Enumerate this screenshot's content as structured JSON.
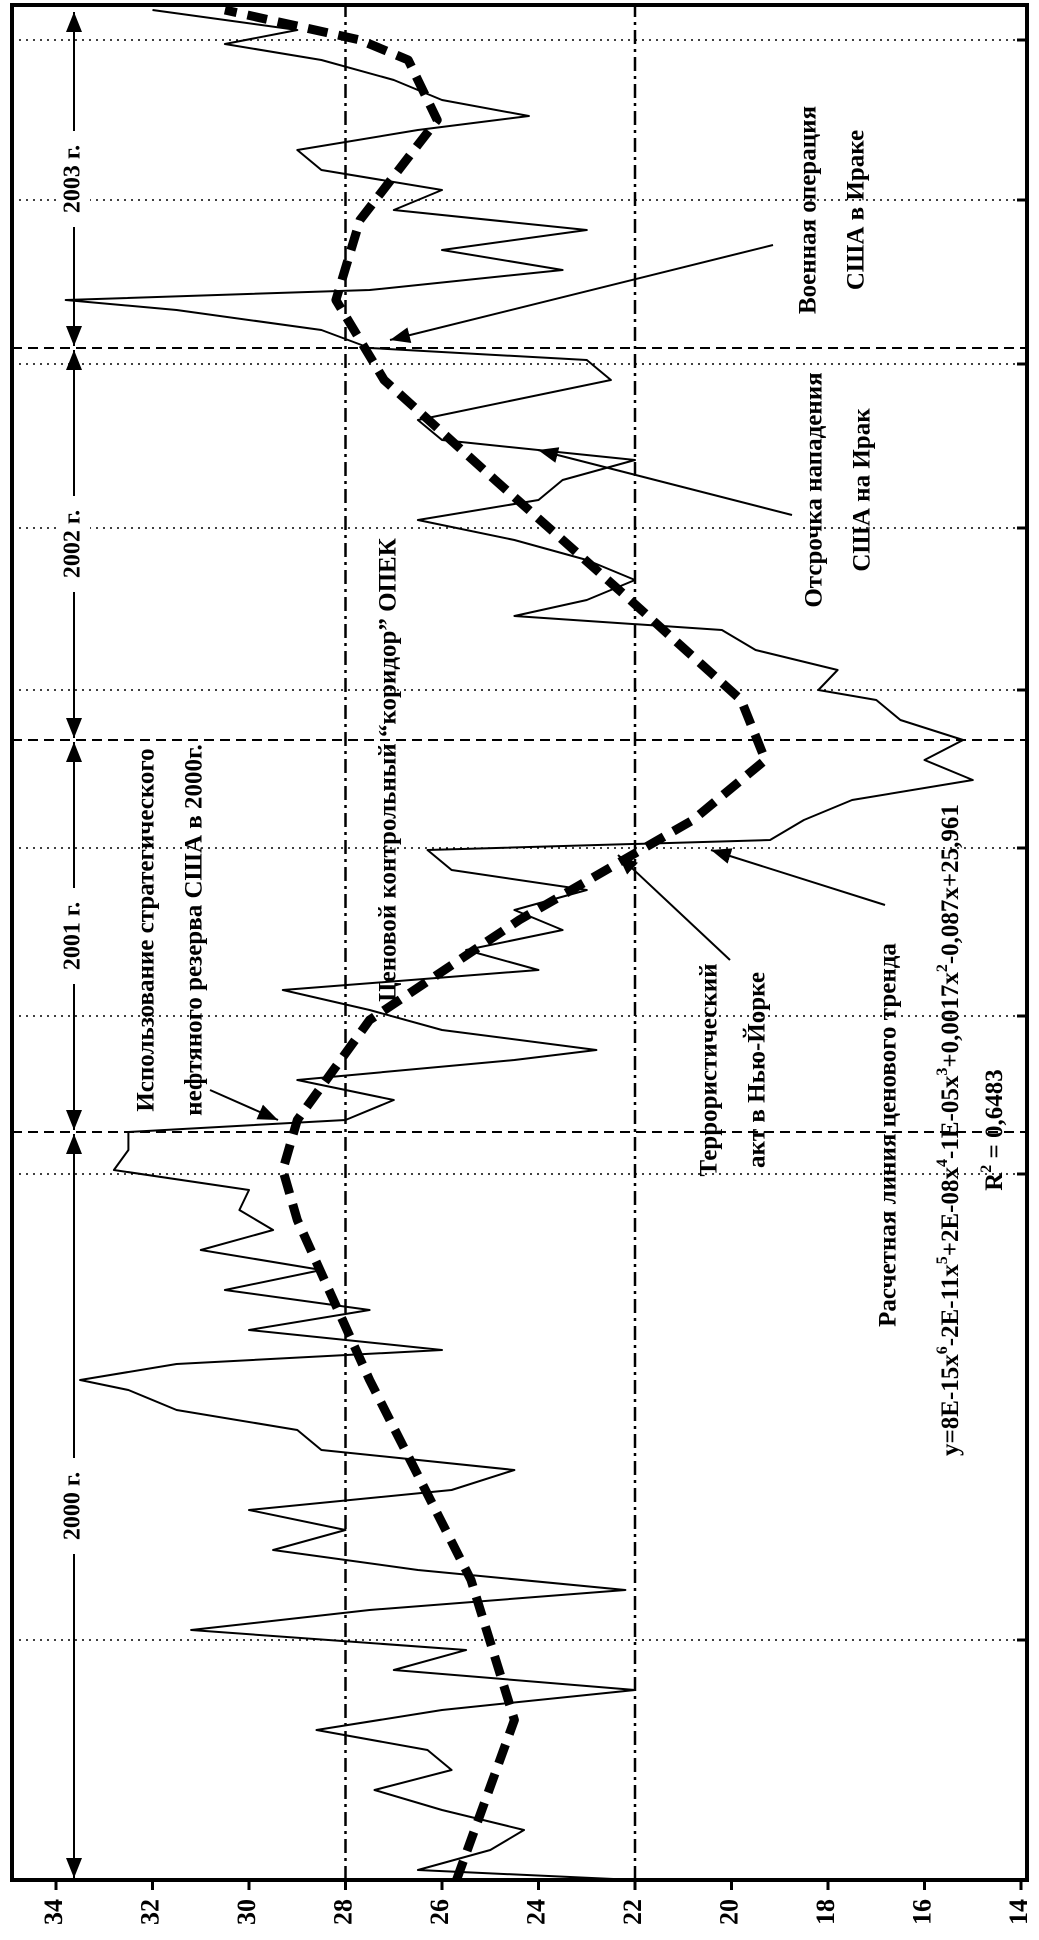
{
  "chart_data": {
    "type": "line",
    "ylim": [
      14,
      34
    ],
    "yticks": [
      34,
      32,
      30,
      28,
      26,
      24,
      22,
      20,
      18,
      16,
      14
    ],
    "xlim": [
      0,
      935
    ],
    "xticks": [
      120,
      353,
      432,
      516,
      595,
      676,
      758,
      840,
      920
    ],
    "grid_x": true,
    "reference_lines": [
      28,
      22
    ],
    "periods": [
      {
        "label": "2000 г.",
        "start": 0,
        "end": 374
      },
      {
        "label": "2001 г.",
        "start": 374,
        "end": 570
      },
      {
        "label": "2002 г.",
        "start": 570,
        "end": 766
      },
      {
        "label": "2003 г.",
        "start": 766,
        "end": 935
      }
    ],
    "series": [
      {
        "color": "#000000",
        "style": "solid",
        "x": [
          0,
          5,
          15,
          25,
          35,
          45,
          55,
          65,
          75,
          85,
          95,
          105,
          115,
          125,
          135,
          145,
          155,
          165,
          175,
          185,
          195,
          205,
          215,
          225,
          235,
          245,
          250,
          258,
          265,
          275,
          285,
          295,
          305,
          315,
          325,
          335,
          345,
          355,
          365,
          374,
          380,
          390,
          400,
          410,
          415,
          425,
          435,
          445,
          455,
          465,
          475,
          485,
          495,
          505,
          515,
          520,
          530,
          540,
          550,
          560,
          570,
          580,
          590,
          595,
          605,
          615,
          625,
          632,
          640,
          650,
          660,
          670,
          680,
          690,
          700,
          710,
          720,
          730,
          740,
          750,
          760,
          766,
          775,
          785,
          790,
          795,
          805,
          815,
          825,
          835,
          845,
          855,
          865,
          875,
          882,
          890,
          900,
          910,
          918,
          925,
          935
        ],
        "values": [
          22.0,
          26.5,
          25.0,
          24.3,
          26.0,
          27.4,
          25.8,
          26.3,
          28.6,
          26.0,
          22.0,
          27.0,
          25.5,
          31.2,
          27.5,
          22.2,
          26.5,
          29.5,
          28.0,
          30.0,
          25.8,
          24.5,
          28.5,
          29.0,
          31.5,
          32.5,
          33.5,
          31.5,
          26.0,
          30.0,
          27.5,
          30.5,
          28.5,
          31.0,
          29.5,
          30.2,
          30.0,
          32.8,
          32.5,
          32.5,
          28.0,
          27.0,
          29.0,
          24.5,
          22.8,
          26.0,
          27.5,
          29.3,
          24.0,
          25.5,
          23.5,
          24.5,
          23.0,
          25.8,
          26.3,
          19.2,
          18.5,
          17.5,
          15.0,
          16.0,
          15.2,
          16.5,
          17.0,
          18.2,
          17.8,
          19.5,
          20.2,
          24.5,
          23.0,
          22.0,
          23.0,
          24.5,
          26.5,
          24.0,
          23.5,
          22.0,
          26.0,
          26.5,
          24.5,
          22.5,
          23.0,
          27.5,
          28.5,
          31.5,
          33.8,
          27.5,
          23.5,
          26.0,
          23.0,
          27.0,
          26.0,
          28.5,
          29.0,
          26.5,
          24.2,
          26.0,
          27.0,
          28.5,
          30.5,
          29.0,
          32.0
        ]
      },
      {
        "color": "#000000",
        "style": "dashed",
        "x": [
          0,
          80,
          150,
          250,
          330,
          355,
          380,
          430,
          480,
          530,
          560,
          590,
          640,
          700,
          750,
          790,
          830,
          880,
          910,
          920,
          935
        ],
        "values": [
          25.7,
          24.5,
          25.4,
          27.5,
          29.0,
          29.3,
          29.0,
          27.5,
          24.4,
          20.8,
          19.3,
          19.8,
          22.1,
          24.9,
          27.2,
          28.2,
          27.7,
          26.1,
          26.7,
          27.7,
          30.5
        ]
      }
    ],
    "annotations": [
      {
        "lines": [
          "Использование стратегического",
          "нефтяного резерва США в 2000г."
        ]
      },
      {
        "lines": [
          "Ценовой контрольный “коридор” ОПЕК"
        ]
      },
      {
        "lines": [
          "Террористический",
          "акт в Нью-Йорке"
        ]
      },
      {
        "lines": [
          "Расчетная линия ценового тренда"
        ]
      },
      {
        "lines": [
          "Отсрочка нападения",
          "США на Ирак"
        ]
      },
      {
        "lines": [
          "Военная операция",
          "США в Ираке"
        ]
      }
    ],
    "equation": [
      {
        "text": "y=8E-15x",
        "sup": "6"
      },
      {
        "text": "-2E-11x",
        "sup": "5"
      },
      {
        "text": "+2E-08x",
        "sup": "4"
      },
      {
        "text": "-1E-05x",
        "sup": "3"
      },
      {
        "text": "+0,0017x",
        "sup": "2"
      },
      {
        "text": "-0,087x+25,961"
      }
    ],
    "r_squared": [
      {
        "text": "R",
        "sup": "2"
      },
      {
        "text": " = 0,6483"
      }
    ]
  }
}
